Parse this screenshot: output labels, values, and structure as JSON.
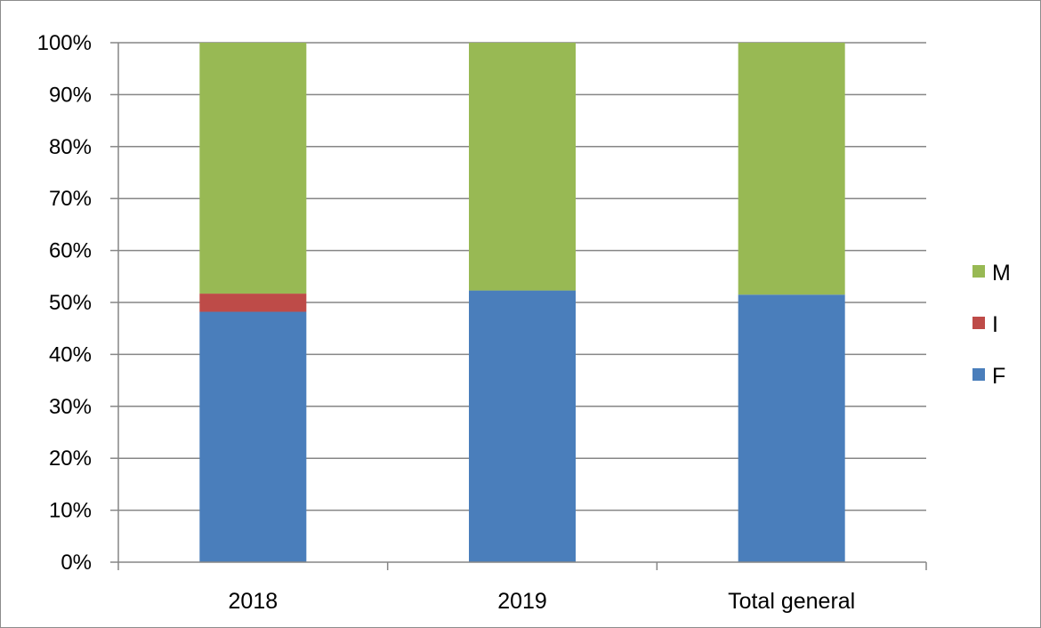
{
  "chart_data": {
    "type": "bar",
    "stacked": true,
    "normalized": true,
    "categories": [
      "2018",
      "2019",
      "Total general"
    ],
    "series": [
      {
        "name": "F",
        "values": [
          48.2,
          52.3,
          51.5
        ],
        "color": "#4a7ebb"
      },
      {
        "name": "I",
        "values": [
          3.5,
          0,
          0
        ],
        "color": "#be4b48"
      },
      {
        "name": "M",
        "values": [
          48.3,
          47.7,
          48.5
        ],
        "color": "#98b954"
      }
    ],
    "y_ticks": [
      "0%",
      "10%",
      "20%",
      "30%",
      "40%",
      "50%",
      "60%",
      "70%",
      "80%",
      "90%",
      "100%"
    ],
    "ylim": [
      0,
      100
    ],
    "grid": true,
    "legend": "right",
    "legend_order": [
      "M",
      "I",
      "F"
    ],
    "title": "",
    "xlabel": "",
    "ylabel": ""
  }
}
